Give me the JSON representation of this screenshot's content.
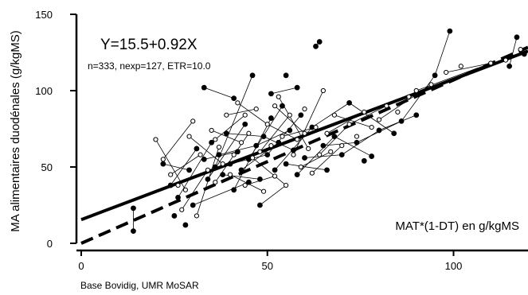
{
  "chart_data": {
    "type": "scatter",
    "title": "",
    "xlabel": "MAT*(1-DT) en g/kgMS",
    "ylabel": "MA alimentaires duodénales (g/kgMS)",
    "xlim": [
      0,
      120
    ],
    "ylim": [
      0,
      150
    ],
    "x_ticks": [
      0,
      50,
      100
    ],
    "y_ticks": [
      0,
      50,
      100,
      150
    ],
    "grid": false,
    "annotations": {
      "equation": "Y=15.5+0.92X",
      "stats": "n=333, nexp=127, ETR=10.0",
      "source": "Base Bovidig, UMR MoSAR"
    },
    "regression_lines": [
      {
        "style": "solid",
        "intercept": 15.5,
        "slope": 0.92
      },
      {
        "style": "dashed",
        "intercept": 0,
        "slope": 1.07
      }
    ],
    "series": [
      {
        "marker": "filled",
        "points": [
          [
            14,
            23
          ],
          [
            14,
            8
          ],
          [
            22,
            52
          ],
          [
            24,
            38
          ],
          [
            25,
            18
          ],
          [
            26,
            30
          ],
          [
            28,
            12
          ],
          [
            29,
            48
          ],
          [
            30,
            25
          ],
          [
            31,
            62
          ],
          [
            33,
            55
          ],
          [
            34,
            42
          ],
          [
            35,
            66
          ],
          [
            36,
            50
          ],
          [
            37,
            58
          ],
          [
            38,
            45
          ],
          [
            39,
            72
          ],
          [
            40,
            52
          ],
          [
            41,
            35
          ],
          [
            42,
            60
          ],
          [
            43,
            48
          ],
          [
            44,
            78
          ],
          [
            45,
            55
          ],
          [
            46,
            110
          ],
          [
            47,
            64
          ],
          [
            48,
            42
          ],
          [
            49,
            70
          ],
          [
            50,
            58
          ],
          [
            51,
            82
          ],
          [
            52,
            48
          ],
          [
            53,
            66
          ],
          [
            54,
            90
          ],
          [
            55,
            52
          ],
          [
            56,
            74
          ],
          [
            57,
            61
          ],
          [
            58,
            45
          ],
          [
            59,
            84
          ],
          [
            60,
            56
          ],
          [
            62,
            76
          ],
          [
            63,
            129
          ],
          [
            64,
            132
          ],
          [
            65,
            64
          ],
          [
            66,
            48
          ],
          [
            68,
            70
          ],
          [
            70,
            58
          ],
          [
            72,
            92
          ],
          [
            74,
            66
          ],
          [
            76,
            54
          ],
          [
            78,
            57
          ],
          [
            80,
            74
          ],
          [
            84,
            72
          ],
          [
            86,
            80
          ],
          [
            90,
            84
          ],
          [
            95,
            110
          ],
          [
            99,
            139
          ],
          [
            115,
            116
          ],
          [
            117,
            135
          ],
          [
            119,
            124
          ],
          [
            55,
            110
          ],
          [
            48,
            25
          ],
          [
            33,
            102
          ],
          [
            41,
            95
          ],
          [
            51,
            98
          ],
          [
            58,
            102
          ],
          [
            45,
            40
          ]
        ]
      },
      {
        "marker": "open",
        "points": [
          [
            20,
            68
          ],
          [
            22,
            55
          ],
          [
            24,
            45
          ],
          [
            26,
            38
          ],
          [
            27,
            22
          ],
          [
            28,
            35
          ],
          [
            29,
            70
          ],
          [
            30,
            80
          ],
          [
            31,
            18
          ],
          [
            32,
            58
          ],
          [
            34,
            48
          ],
          [
            35,
            74
          ],
          [
            36,
            40
          ],
          [
            37,
            63
          ],
          [
            38,
            52
          ],
          [
            39,
            84
          ],
          [
            40,
            45
          ],
          [
            41,
            58
          ],
          [
            42,
            92
          ],
          [
            43,
            66
          ],
          [
            44,
            38
          ],
          [
            45,
            72
          ],
          [
            46,
            56
          ],
          [
            47,
            88
          ],
          [
            48,
            60
          ],
          [
            49,
            34
          ],
          [
            50,
            78
          ],
          [
            51,
            64
          ],
          [
            52,
            44
          ],
          [
            53,
            96
          ],
          [
            54,
            70
          ],
          [
            55,
            38
          ],
          [
            56,
            84
          ],
          [
            57,
            58
          ],
          [
            58,
            68
          ],
          [
            59,
            50
          ],
          [
            60,
            88
          ],
          [
            61,
            62
          ],
          [
            62,
            46
          ],
          [
            63,
            76
          ],
          [
            64,
            58
          ],
          [
            65,
            100
          ],
          [
            66,
            72
          ],
          [
            67,
            60
          ],
          [
            68,
            84
          ],
          [
            70,
            64
          ],
          [
            72,
            78
          ],
          [
            74,
            70
          ],
          [
            76,
            86
          ],
          [
            78,
            76
          ],
          [
            80,
            81
          ],
          [
            82,
            90
          ],
          [
            85,
            86
          ],
          [
            88,
            96
          ],
          [
            90,
            100
          ],
          [
            94,
            104
          ],
          [
            98,
            112
          ],
          [
            102,
            116
          ],
          [
            110,
            118
          ],
          [
            114,
            120
          ],
          [
            118,
            127
          ],
          [
            36,
            68
          ],
          [
            44,
            84
          ],
          [
            52,
            90
          ],
          [
            60,
            72
          ]
        ]
      }
    ],
    "connections": [
      [
        [
          14,
          23
        ],
        [
          14,
          8
        ]
      ],
      [
        [
          63,
          129
        ],
        [
          64,
          132
        ]
      ],
      [
        [
          95,
          110
        ],
        [
          99,
          139
        ]
      ],
      [
        [
          115,
          116
        ],
        [
          117,
          135
        ]
      ],
      [
        [
          22,
          52
        ],
        [
          29,
          48
        ]
      ],
      [
        [
          24,
          38
        ],
        [
          31,
          62
        ]
      ],
      [
        [
          26,
          30
        ],
        [
          35,
          66
        ]
      ],
      [
        [
          33,
          55
        ],
        [
          42,
          60
        ]
      ],
      [
        [
          34,
          42
        ],
        [
          44,
          78
        ]
      ],
      [
        [
          36,
          50
        ],
        [
          46,
          110
        ]
      ],
      [
        [
          37,
          58
        ],
        [
          47,
          64
        ]
      ],
      [
        [
          38,
          45
        ],
        [
          48,
          42
        ]
      ],
      [
        [
          39,
          72
        ],
        [
          49,
          70
        ]
      ],
      [
        [
          40,
          52
        ],
        [
          50,
          58
        ]
      ],
      [
        [
          41,
          35
        ],
        [
          51,
          82
        ]
      ],
      [
        [
          43,
          48
        ],
        [
          53,
          66
        ]
      ],
      [
        [
          45,
          55
        ],
        [
          54,
          90
        ]
      ],
      [
        [
          47,
          64
        ],
        [
          56,
          74
        ]
      ],
      [
        [
          49,
          70
        ],
        [
          57,
          61
        ]
      ],
      [
        [
          50,
          58
        ],
        [
          59,
          84
        ]
      ],
      [
        [
          52,
          48
        ],
        [
          62,
          76
        ]
      ],
      [
        [
          55,
          52
        ],
        [
          66,
          48
        ]
      ],
      [
        [
          58,
          45
        ],
        [
          68,
          70
        ]
      ],
      [
        [
          60,
          56
        ],
        [
          70,
          58
        ]
      ],
      [
        [
          62,
          76
        ],
        [
          72,
          92
        ]
      ],
      [
        [
          65,
          64
        ],
        [
          74,
          66
        ]
      ],
      [
        [
          68,
          70
        ],
        [
          78,
          57
        ]
      ],
      [
        [
          70,
          58
        ],
        [
          80,
          74
        ]
      ],
      [
        [
          72,
          92
        ],
        [
          84,
          72
        ]
      ],
      [
        [
          74,
          66
        ],
        [
          86,
          80
        ]
      ],
      [
        [
          80,
          74
        ],
        [
          90,
          84
        ]
      ],
      [
        [
          86,
          80
        ],
        [
          95,
          110
        ]
      ],
      [
        [
          20,
          68
        ],
        [
          28,
          35
        ]
      ],
      [
        [
          22,
          55
        ],
        [
          30,
          80
        ]
      ],
      [
        [
          24,
          45
        ],
        [
          32,
          58
        ]
      ],
      [
        [
          27,
          22
        ],
        [
          34,
          48
        ]
      ],
      [
        [
          29,
          70
        ],
        [
          38,
          52
        ]
      ],
      [
        [
          31,
          18
        ],
        [
          37,
          63
        ]
      ],
      [
        [
          35,
          74
        ],
        [
          43,
          66
        ]
      ],
      [
        [
          36,
          40
        ],
        [
          45,
          72
        ]
      ],
      [
        [
          39,
          84
        ],
        [
          47,
          88
        ]
      ],
      [
        [
          40,
          45
        ],
        [
          49,
          34
        ]
      ],
      [
        [
          42,
          92
        ],
        [
          50,
          78
        ]
      ],
      [
        [
          44,
          38
        ],
        [
          52,
          44
        ]
      ],
      [
        [
          46,
          56
        ],
        [
          55,
          38
        ]
      ],
      [
        [
          48,
          60
        ],
        [
          56,
          84
        ]
      ],
      [
        [
          50,
          78
        ],
        [
          58,
          68
        ]
      ],
      [
        [
          53,
          96
        ],
        [
          61,
          62
        ]
      ],
      [
        [
          54,
          70
        ],
        [
          63,
          76
        ]
      ],
      [
        [
          57,
          58
        ],
        [
          65,
          100
        ]
      ],
      [
        [
          59,
          50
        ],
        [
          67,
          60
        ]
      ],
      [
        [
          62,
          46
        ],
        [
          70,
          64
        ]
      ],
      [
        [
          64,
          58
        ],
        [
          72,
          78
        ]
      ],
      [
        [
          66,
          72
        ],
        [
          76,
          86
        ]
      ],
      [
        [
          68,
          84
        ],
        [
          78,
          76
        ]
      ],
      [
        [
          72,
          78
        ],
        [
          82,
          90
        ]
      ],
      [
        [
          76,
          86
        ],
        [
          88,
          96
        ]
      ],
      [
        [
          80,
          81
        ],
        [
          94,
          104
        ]
      ],
      [
        [
          90,
          100
        ],
        [
          110,
          118
        ]
      ],
      [
        [
          98,
          112
        ],
        [
          114,
          120
        ]
      ],
      [
        [
          33,
          102
        ],
        [
          41,
          95
        ]
      ],
      [
        [
          51,
          98
        ],
        [
          58,
          102
        ]
      ],
      [
        [
          36,
          68
        ],
        [
          44,
          84
        ]
      ],
      [
        [
          52,
          90
        ],
        [
          60,
          72
        ]
      ],
      [
        [
          30,
          25
        ],
        [
          45,
          40
        ]
      ],
      [
        [
          48,
          25
        ],
        [
          55,
          38
        ]
      ]
    ]
  }
}
